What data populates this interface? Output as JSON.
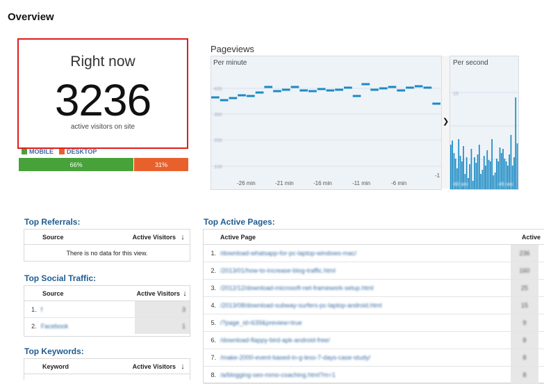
{
  "page": {
    "title": "Overview"
  },
  "right_now": {
    "heading": "Right now",
    "count": "3236",
    "subtitle": "active visitors on site",
    "legend": [
      {
        "label": "MOBILE",
        "color": "#48a23a"
      },
      {
        "label": "DESKTOP",
        "color": "#e8612c"
      }
    ],
    "mobile_percent": "66%",
    "desktop_percent": "31%",
    "mobile_share": 0.66,
    "desktop_share": 0.31
  },
  "pageviews": {
    "title": "Pageviews",
    "per_minute_label": "Per minute",
    "per_second_label": "Per second",
    "x_ticks": [
      "-26 min",
      "-21 min",
      "-16 min",
      "-11 min",
      "-6 min",
      "-1"
    ],
    "accent_color": "#1a8ac4"
  },
  "top_referrals": {
    "title": "Top Referrals:",
    "col_source": "Source",
    "col_visitors": "Active Visitors",
    "empty_text": "There is no data for this view."
  },
  "top_social": {
    "title": "Top Social Traffic:",
    "col_source": "Source",
    "col_visitors": "Active Visitors",
    "rows": [
      {
        "index": "1.",
        "source": "f",
        "visitors": "3"
      },
      {
        "index": "2.",
        "source": "Facebook",
        "visitors": "1"
      }
    ]
  },
  "top_keywords": {
    "title": "Top Keywords:",
    "col_keyword": "Keyword",
    "col_visitors": "Active Visitors"
  },
  "top_pages": {
    "title": "Top Active Pages:",
    "col_page": "Active Page",
    "col_visitors": "Active",
    "rows": [
      {
        "index": "1.",
        "page": "/download-whatsapp-for-pc-laptop-windows-mac/",
        "visitors": "236"
      },
      {
        "index": "2.",
        "page": "/2013/01/how-to-increase-blog-traffic.html",
        "visitors": "160"
      },
      {
        "index": "3.",
        "page": "/2012/12/download-microsoft-net-framework-setup.html",
        "visitors": "25"
      },
      {
        "index": "4.",
        "page": "/2013/08/download-subway-surfers-pc-laptop-android.html",
        "visitors": "15"
      },
      {
        "index": "5.",
        "page": "/?page_id=639&preview=true",
        "visitors": "9"
      },
      {
        "index": "6.",
        "page": "/download-flappy-bird-apk-android-free/",
        "visitors": "8"
      },
      {
        "index": "7.",
        "page": "/make-2000-event-based-in-g-less-7-days-case-study/",
        "visitors": "8"
      },
      {
        "index": "8.",
        "page": "/a/blogging-seo-mmo-coaching.html?m=1",
        "visitors": "8"
      }
    ]
  }
}
